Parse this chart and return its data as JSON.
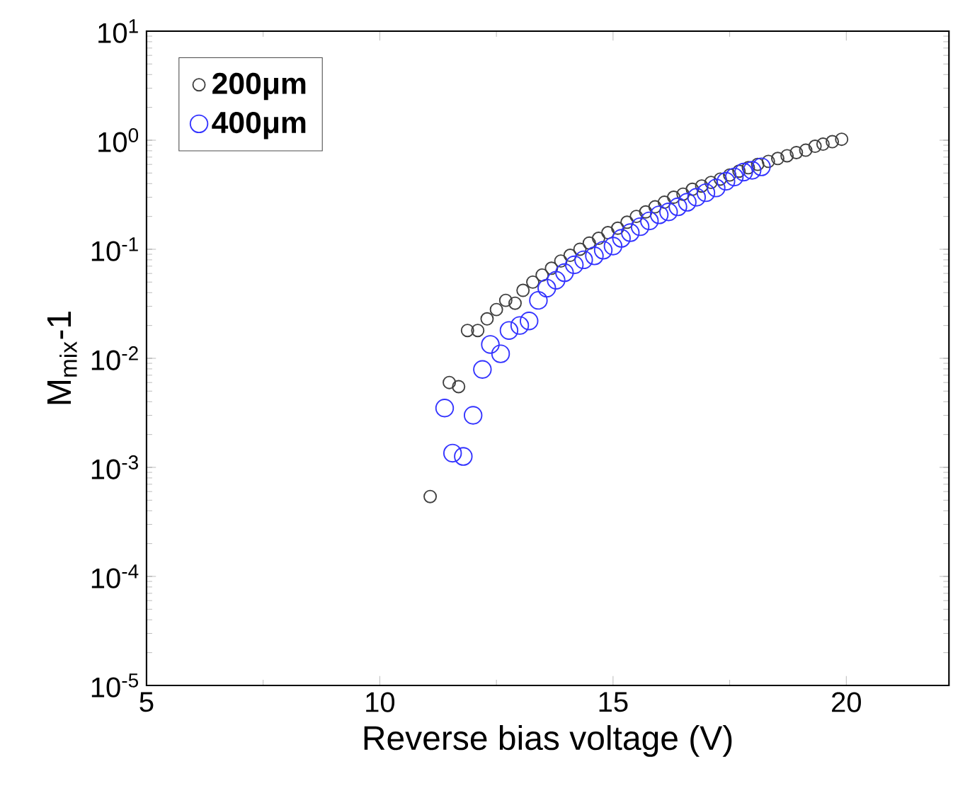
{
  "chart_data": {
    "type": "scatter",
    "xlabel": "Reverse bias voltage (V)",
    "ylabel": "M$_{mix}$-1",
    "log": "y",
    "marker": "circle",
    "grid": false,
    "legend": "top left",
    "xlim": [
      5,
      22.2
    ],
    "xticks": [
      5,
      10,
      15,
      20
    ],
    "ylim": [
      1e-05,
      10
    ],
    "yticks": [
      {
        "value": 1e-05,
        "label": "10$^{-5}$"
      },
      {
        "value": 0.0001,
        "label": "10$^{-4}$"
      },
      {
        "value": 0.001,
        "label": "10$^{-3}$"
      },
      {
        "value": 0.01,
        "label": "10$^{-2}$"
      },
      {
        "value": 0.1,
        "label": "10$^{-1}$"
      },
      {
        "value": 1,
        "label": "10$^{0}$"
      },
      {
        "value": 10,
        "label": "10$^{1}$"
      }
    ],
    "series": [
      {
        "name": "200μm",
        "color": "#404040",
        "x": [
          11.08,
          11.49,
          11.69,
          11.88,
          12.1,
          12.3,
          12.5,
          12.7,
          12.9,
          13.07,
          13.28,
          13.48,
          13.68,
          13.88,
          14.08,
          14.29,
          14.49,
          14.69,
          14.89,
          15.1,
          15.3,
          15.5,
          15.7,
          15.9,
          16.1,
          16.3,
          16.5,
          16.7,
          16.9,
          17.1,
          17.3,
          17.5,
          17.7,
          17.9,
          18.1,
          18.33,
          18.53,
          18.73,
          18.93,
          19.13,
          19.33,
          19.5,
          19.7,
          19.9
        ],
        "values": [
          0.00054,
          0.006,
          0.0055,
          0.018,
          0.018,
          0.023,
          0.028,
          0.034,
          0.032,
          0.042,
          0.05,
          0.058,
          0.067,
          0.078,
          0.088,
          0.1,
          0.114,
          0.126,
          0.142,
          0.156,
          0.177,
          0.2,
          0.22,
          0.245,
          0.27,
          0.3,
          0.32,
          0.355,
          0.38,
          0.41,
          0.44,
          0.48,
          0.52,
          0.56,
          0.6,
          0.64,
          0.68,
          0.72,
          0.77,
          0.81,
          0.88,
          0.92,
          0.97,
          1.02
        ]
      },
      {
        "name": "400μm",
        "color": "#3333ff",
        "x": [
          11.39,
          11.56,
          11.79,
          12.0,
          12.2,
          12.37,
          12.59,
          12.77,
          13.0,
          13.2,
          13.4,
          13.58,
          13.78,
          13.96,
          14.17,
          14.37,
          14.6,
          14.79,
          15.0,
          15.18,
          15.37,
          15.58,
          15.78,
          15.99,
          16.19,
          16.39,
          16.59,
          16.79,
          16.99,
          17.21,
          17.42,
          17.6,
          17.8,
          17.98,
          18.18
        ],
        "values": [
          0.0035,
          0.00135,
          0.00126,
          0.003,
          0.0079,
          0.0134,
          0.011,
          0.018,
          0.02,
          0.022,
          0.034,
          0.044,
          0.052,
          0.061,
          0.072,
          0.08,
          0.087,
          0.098,
          0.107,
          0.126,
          0.142,
          0.161,
          0.182,
          0.207,
          0.22,
          0.245,
          0.27,
          0.3,
          0.33,
          0.365,
          0.42,
          0.46,
          0.51,
          0.53,
          0.57
        ]
      }
    ]
  }
}
